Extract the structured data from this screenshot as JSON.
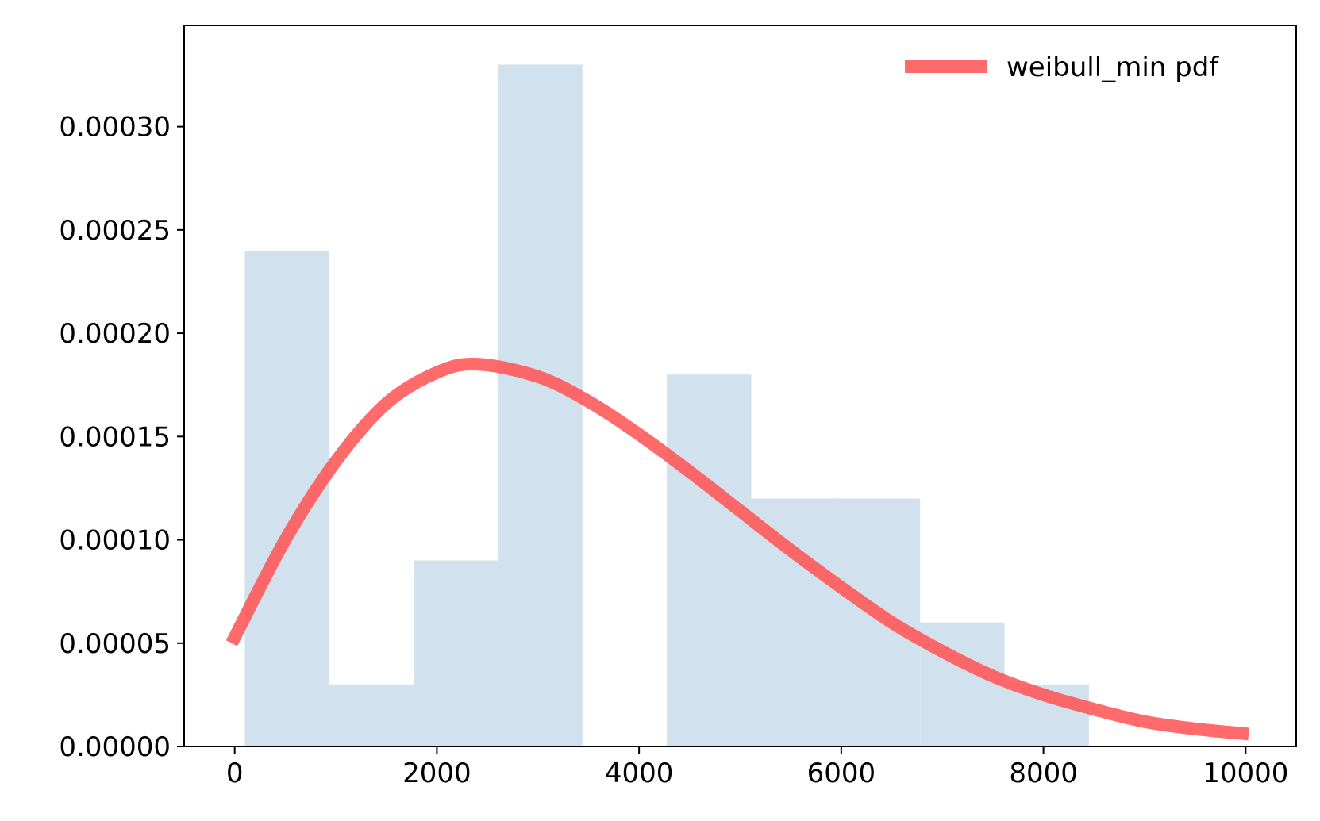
{
  "chart_data": {
    "type": "bar",
    "title": "",
    "xlabel": "",
    "ylabel": "",
    "xlim": [
      -500,
      10500
    ],
    "ylim": [
      0,
      0.000349
    ],
    "grid": false,
    "legend_position": "top-right",
    "x_ticks": [
      {
        "value": 0,
        "label": "0"
      },
      {
        "value": 2000,
        "label": "2000"
      },
      {
        "value": 4000,
        "label": "4000"
      },
      {
        "value": 6000,
        "label": "6000"
      },
      {
        "value": 8000,
        "label": "8000"
      },
      {
        "value": 10000,
        "label": "10000"
      }
    ],
    "y_ticks": [
      {
        "value": 0.0,
        "label": "0.00000"
      },
      {
        "value": 5e-05,
        "label": "0.00005"
      },
      {
        "value": 0.0001,
        "label": "0.00010"
      },
      {
        "value": 0.00015,
        "label": "0.00015"
      },
      {
        "value": 0.0002,
        "label": "0.00020"
      },
      {
        "value": 0.00025,
        "label": "0.00025"
      },
      {
        "value": 0.0003,
        "label": "0.00030"
      }
    ],
    "histogram": {
      "color": "#c5d9ea",
      "bins": [
        {
          "x0": 100,
          "x1": 935,
          "density": 0.00024
        },
        {
          "x0": 935,
          "x1": 1770,
          "density": 3e-05
        },
        {
          "x0": 1770,
          "x1": 2605,
          "density": 9e-05
        },
        {
          "x0": 2605,
          "x1": 3440,
          "density": 0.00033
        },
        {
          "x0": 3440,
          "x1": 4275,
          "density": 0.0
        },
        {
          "x0": 4275,
          "x1": 5110,
          "density": 0.00018
        },
        {
          "x0": 5110,
          "x1": 5945,
          "density": 0.00012
        },
        {
          "x0": 5945,
          "x1": 6780,
          "density": 0.00012
        },
        {
          "x0": 6780,
          "x1": 7615,
          "density": 6e-05
        },
        {
          "x0": 7615,
          "x1": 8450,
          "density": 3e-05
        }
      ]
    },
    "series": [
      {
        "name": "weibull_min pdf",
        "color": "#ff5a5a",
        "x": [
          -30,
          500,
          1000,
          1500,
          2000,
          2400,
          3000,
          3500,
          4000,
          4500,
          5000,
          5500,
          6000,
          6500,
          7000,
          7500,
          8000,
          8500,
          9000,
          9500,
          10030
        ],
        "y": [
          5e-05,
          0.0001,
          0.000138,
          0.000166,
          0.000181,
          0.000185,
          0.000179,
          0.000167,
          0.000151,
          0.000133,
          0.000114,
          9.5e-05,
          7.7e-05,
          6e-05,
          4.6e-05,
          3.4e-05,
          2.5e-05,
          1.8e-05,
          1.2e-05,
          8.5e-06,
          6e-06
        ]
      }
    ]
  }
}
